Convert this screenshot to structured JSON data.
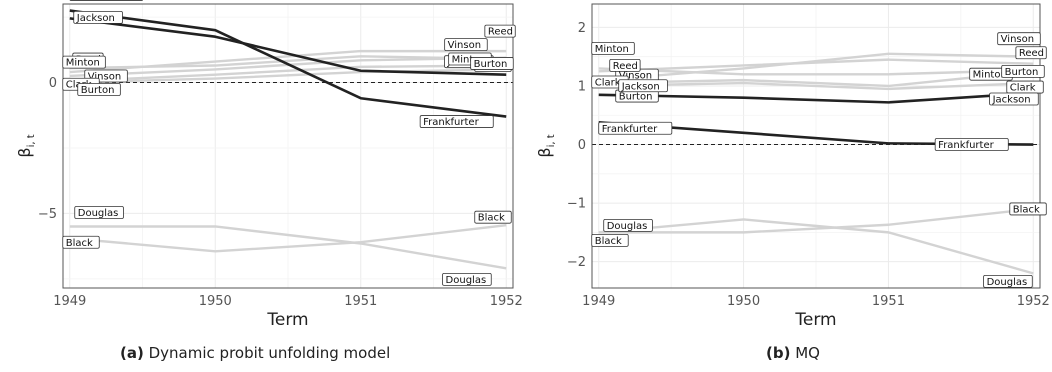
{
  "chart_data": [
    {
      "type": "line",
      "panel_label": "(a)",
      "caption": "Dynamic probit unfolding model",
      "xlabel": "Term",
      "ylabel": "β",
      "ylabel_sub": "i, t",
      "x": [
        1949,
        1950,
        1951,
        1952
      ],
      "x_ticks": [
        "1949",
        "1950",
        "1951",
        "1952"
      ],
      "ylim": [
        -7.85,
        3.0
      ],
      "y_ticks": [
        -5,
        0
      ],
      "y_tick_labels": [
        "−5",
        "0"
      ],
      "reference_line_y": 0,
      "grid": true,
      "highlight_color": "#222222",
      "background_series_color": "#d3d3d3",
      "series": [
        {
          "name": "Frankfurter",
          "highlight": true,
          "values": [
            2.75,
            2.0,
            -0.6,
            -1.3
          ]
        },
        {
          "name": "Jackson",
          "highlight": true,
          "values": [
            2.45,
            1.75,
            0.45,
            0.3
          ]
        },
        {
          "name": "Reed",
          "highlight": false,
          "values": [
            0.4,
            0.8,
            1.2,
            1.2
          ]
        },
        {
          "name": "Minton",
          "highlight": false,
          "values": [
            0.55,
            0.65,
            1.0,
            0.9
          ]
        },
        {
          "name": "Vinson",
          "highlight": false,
          "values": [
            0.25,
            0.5,
            0.85,
            0.95
          ]
        },
        {
          "name": "Clark",
          "highlight": false,
          "values": [
            0.05,
            0.3,
            0.6,
            0.65
          ]
        },
        {
          "name": "Burton",
          "highlight": false,
          "values": [
            0.0,
            0.15,
            0.4,
            0.5
          ]
        },
        {
          "name": "Douglas",
          "highlight": false,
          "values": [
            -5.5,
            -5.5,
            -6.15,
            -7.1
          ]
        },
        {
          "name": "Black",
          "highlight": false,
          "values": [
            -5.95,
            -6.45,
            -6.1,
            -5.45
          ]
        }
      ]
    },
    {
      "type": "line",
      "panel_label": "(b)",
      "caption": "MQ",
      "xlabel": "Term",
      "ylabel": "β",
      "ylabel_sub": "i, t",
      "x": [
        1949,
        1950,
        1951,
        1952
      ],
      "x_ticks": [
        "1949",
        "1950",
        "1951",
        "1952"
      ],
      "ylim": [
        -2.45,
        2.4
      ],
      "y_ticks": [
        -2,
        -1,
        0,
        1,
        2
      ],
      "y_tick_labels": [
        "−2",
        "−1",
        "0",
        "1",
        "2"
      ],
      "reference_line_y": 0,
      "grid": true,
      "highlight_color": "#222222",
      "background_series_color": "#d3d3d3",
      "series": [
        {
          "name": "Vinson",
          "highlight": false,
          "values": [
            1.1,
            1.3,
            1.55,
            1.5
          ]
        },
        {
          "name": "Reed",
          "highlight": false,
          "values": [
            1.25,
            1.35,
            1.45,
            1.38
          ]
        },
        {
          "name": "Minton",
          "highlight": false,
          "values": [
            1.3,
            1.2,
            1.2,
            1.27
          ]
        },
        {
          "name": "Burton",
          "highlight": false,
          "values": [
            1.05,
            1.1,
            1.0,
            1.25
          ]
        },
        {
          "name": "Clark",
          "highlight": false,
          "values": [
            1.0,
            1.05,
            0.95,
            1.05
          ]
        },
        {
          "name": "Jackson",
          "highlight": true,
          "values": [
            0.85,
            0.8,
            0.72,
            0.88
          ]
        },
        {
          "name": "Frankfurter",
          "highlight": true,
          "values": [
            0.38,
            0.2,
            0.02,
            0.0
          ]
        },
        {
          "name": "Douglas",
          "highlight": false,
          "values": [
            -1.5,
            -1.28,
            -1.5,
            -2.2
          ]
        },
        {
          "name": "Black",
          "highlight": false,
          "values": [
            -1.5,
            -1.5,
            -1.37,
            -1.1
          ]
        }
      ]
    }
  ]
}
